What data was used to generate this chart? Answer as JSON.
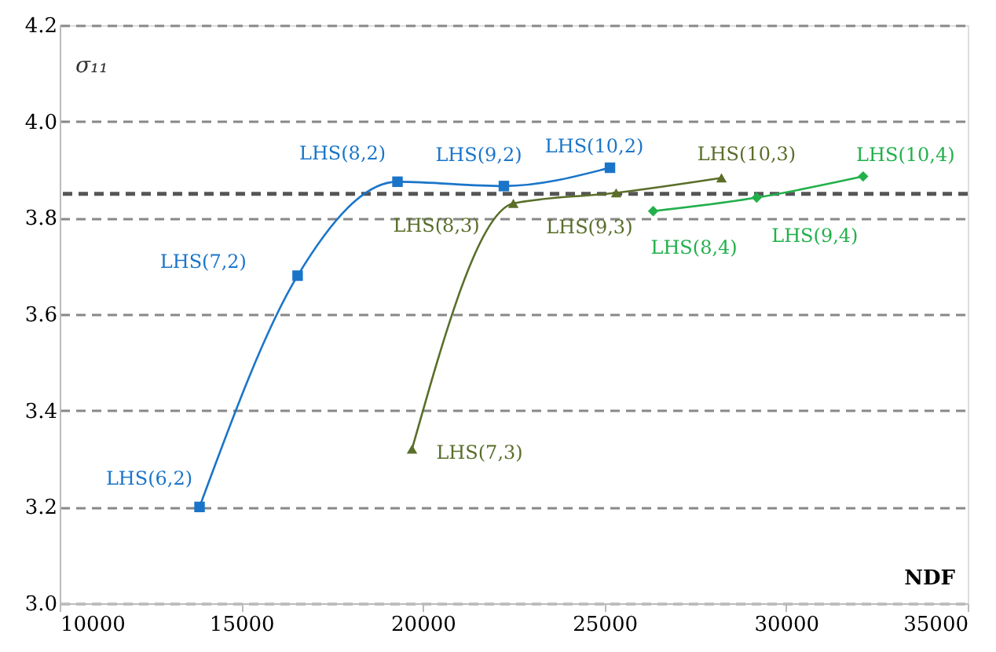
{
  "chart_data": {
    "type": "line",
    "xlabel": "NDF",
    "ylabel": "σ₁₁",
    "xlim": [
      10000,
      35000
    ],
    "xticks": [
      10000,
      15000,
      20000,
      25000,
      30000,
      35000
    ],
    "ylim": [
      3.0,
      4.2
    ],
    "yticks": [
      {
        "value": 3.0,
        "label": "3.0"
      },
      3.2,
      3.4,
      3.6,
      3.8,
      {
        "value": 4.0,
        "label": "4.0"
      },
      4.2
    ],
    "grid": "y",
    "line_style": "solid",
    "series": [
      {
        "color": "#1a75c9",
        "marker": "square",
        "x": [
          13850,
          16550,
          19300,
          22230,
          25150
        ],
        "values": [
          3.2,
          3.68,
          3.875,
          3.866,
          3.904
        ]
      },
      {
        "color": "#5a6e2a",
        "marker": "triangle",
        "x": [
          19700,
          22490,
          25320,
          28220
        ],
        "values": [
          3.32,
          3.83,
          3.852,
          3.883
        ]
      },
      {
        "color": "#22b04b",
        "marker": "diamond",
        "x": [
          26340,
          29190,
          32120
        ],
        "values": [
          3.814,
          3.842,
          3.886
        ]
      }
    ],
    "ref_lines": [
      {
        "axis": "y",
        "value": 3.85,
        "color": "#555555",
        "line_style": "dashed"
      }
    ],
    "annotations": [
      {
        "text": "LHS(6,2)",
        "x": 13850,
        "y": 3.2
      },
      {
        "text": "LHS(7,2)",
        "x": 16550,
        "y": 3.68
      },
      {
        "text": "LHS(8,2)",
        "x": 19300,
        "y": 3.875
      },
      {
        "text": "LHS(9,2)",
        "x": 22230,
        "y": 3.866
      },
      {
        "text": "LHS(10,2)",
        "x": 25150,
        "y": 3.904
      },
      {
        "text": "LHS(7,3)",
        "x": 19700,
        "y": 3.32
      },
      {
        "text": "LHS(8,3)",
        "x": 22490,
        "y": 3.83
      },
      {
        "text": "LHS(9,3)",
        "x": 25320,
        "y": 3.852
      },
      {
        "text": "LHS(10,3)",
        "x": 28220,
        "y": 3.883
      },
      {
        "text": "LHS(8,4)",
        "x": 26340,
        "y": 3.814
      },
      {
        "text": "LHS(9,4)",
        "x": 29190,
        "y": 3.842
      },
      {
        "text": "LHS(10,4)",
        "x": 32120,
        "y": 3.886
      }
    ]
  }
}
